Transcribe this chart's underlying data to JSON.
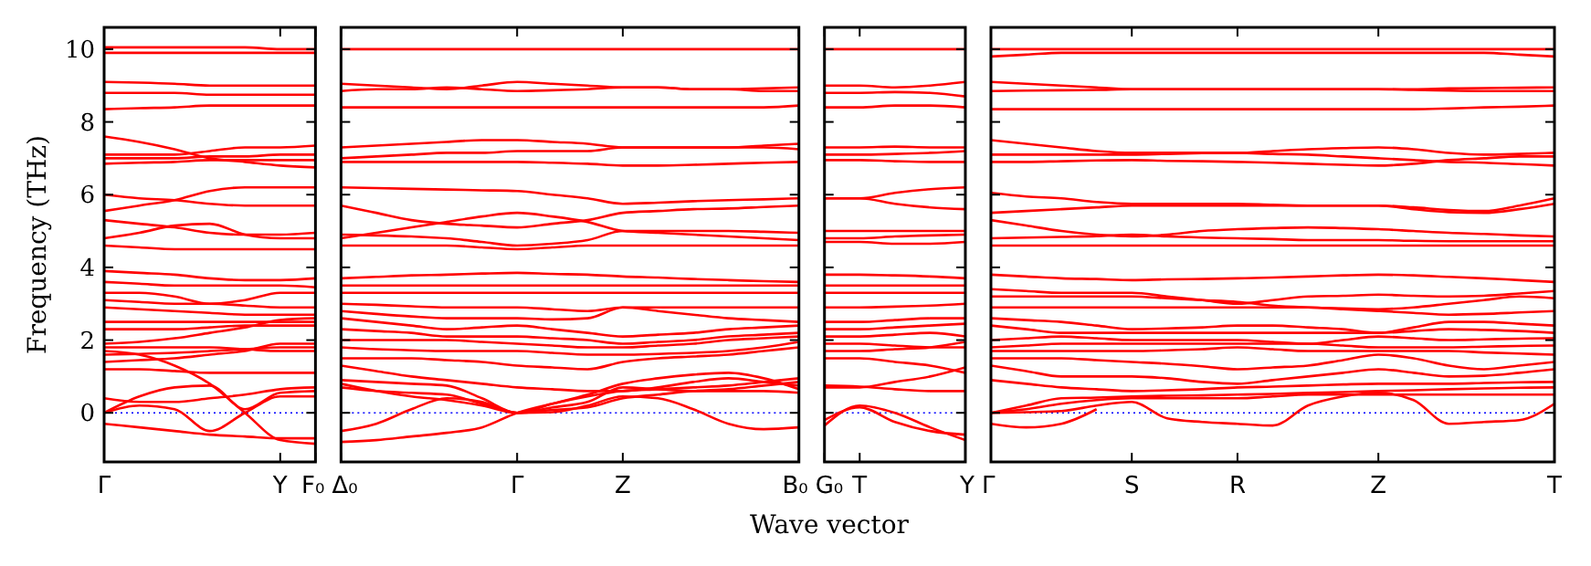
{
  "chart_data": [
    {
      "type": "line",
      "ylabel": "Frequency (THz)",
      "categories": [
        "Γ",
        null,
        null,
        null,
        null,
        "Y",
        "F₀"
      ],
      "ylim": [
        -1.35,
        10.6
      ],
      "yticks": [
        0,
        2,
        4,
        6,
        8,
        10
      ],
      "ref_lines": [
        {
          "axis": "y",
          "value": 0,
          "color": "#0000ff",
          "line_style": "dotted"
        }
      ],
      "series": [
        {
          "color": "#ff0000",
          "values": [
            10.05,
            10.05,
            10.05,
            10.05,
            10.05,
            10.0,
            10.0
          ]
        },
        {
          "color": "#ff0000",
          "values": [
            9.9,
            9.9,
            9.9,
            9.9,
            9.9,
            9.9,
            9.9
          ]
        },
        {
          "color": "#ff0000",
          "values": [
            9.1,
            9.08,
            9.05,
            9.0,
            9.0,
            9.0,
            9.0
          ]
        },
        {
          "color": "#ff0000",
          "values": [
            8.8,
            8.8,
            8.8,
            8.75,
            8.75,
            8.75,
            8.75
          ]
        },
        {
          "color": "#ff0000",
          "values": [
            8.35,
            8.38,
            8.4,
            8.45,
            8.45,
            8.45,
            8.45
          ]
        },
        {
          "color": "#ff0000",
          "values": [
            7.6,
            7.45,
            7.25,
            7.0,
            6.9,
            6.8,
            6.75
          ]
        },
        {
          "color": "#ff0000",
          "values": [
            7.1,
            7.1,
            7.1,
            7.2,
            7.3,
            7.3,
            7.35
          ]
        },
        {
          "color": "#ff0000",
          "values": [
            7.0,
            7.0,
            7.0,
            7.05,
            7.05,
            7.1,
            7.1
          ]
        },
        {
          "color": "#ff0000",
          "values": [
            6.85,
            6.88,
            6.9,
            6.95,
            6.95,
            6.95,
            6.95
          ]
        },
        {
          "color": "#ff0000",
          "values": [
            6.0,
            5.9,
            5.85,
            5.75,
            5.7,
            5.7,
            5.7
          ]
        },
        {
          "color": "#ff0000",
          "values": [
            5.55,
            5.7,
            5.85,
            6.1,
            6.2,
            6.2,
            6.2
          ]
        },
        {
          "color": "#ff0000",
          "values": [
            5.3,
            5.2,
            5.1,
            4.95,
            4.9,
            4.9,
            4.95
          ]
        },
        {
          "color": "#ff0000",
          "values": [
            4.8,
            4.95,
            5.15,
            5.2,
            4.9,
            4.8,
            4.8
          ]
        },
        {
          "color": "#ff0000",
          "values": [
            4.6,
            4.55,
            4.5,
            4.5,
            4.5,
            4.5,
            4.5
          ]
        },
        {
          "color": "#ff0000",
          "values": [
            3.9,
            3.85,
            3.8,
            3.7,
            3.65,
            3.65,
            3.7
          ]
        },
        {
          "color": "#ff0000",
          "values": [
            3.6,
            3.55,
            3.5,
            3.5,
            3.5,
            3.5,
            3.45
          ]
        },
        {
          "color": "#ff0000",
          "values": [
            3.3,
            3.3,
            3.2,
            3.0,
            3.1,
            3.3,
            3.3
          ]
        },
        {
          "color": "#ff0000",
          "values": [
            3.1,
            3.05,
            3.0,
            3.0,
            2.95,
            2.9,
            2.9
          ]
        },
        {
          "color": "#ff0000",
          "values": [
            2.9,
            2.85,
            2.8,
            2.75,
            2.7,
            2.7,
            2.7
          ]
        },
        {
          "color": "#ff0000",
          "values": [
            2.5,
            2.5,
            2.5,
            2.5,
            2.5,
            2.5,
            2.5
          ]
        },
        {
          "color": "#ff0000",
          "values": [
            2.3,
            2.3,
            2.3,
            2.35,
            2.4,
            2.4,
            2.4
          ]
        },
        {
          "color": "#ff0000",
          "values": [
            1.9,
            1.95,
            2.05,
            2.2,
            2.35,
            2.55,
            2.6
          ]
        },
        {
          "color": "#ff0000",
          "values": [
            1.8,
            1.8,
            1.8,
            1.8,
            1.75,
            1.7,
            1.7
          ]
        },
        {
          "color": "#ff0000",
          "values": [
            1.6,
            1.62,
            1.65,
            1.7,
            1.75,
            1.8,
            1.8
          ]
        },
        {
          "color": "#ff0000",
          "values": [
            1.4,
            1.45,
            1.5,
            1.6,
            1.7,
            1.9,
            1.9
          ]
        },
        {
          "color": "#ff0000",
          "values": [
            1.2,
            1.2,
            1.15,
            1.1,
            1.1,
            1.1,
            1.1
          ]
        },
        {
          "color": "#ff0000",
          "values": [
            1.7,
            1.6,
            1.3,
            0.8,
            0,
            -0.75,
            -0.85
          ]
        },
        {
          "color": "#ff0000",
          "values": [
            0,
            0.45,
            0.7,
            0.75,
            0.1,
            0.55,
            0.6
          ]
        },
        {
          "color": "#ff0000",
          "values": [
            0,
            0.2,
            0.1,
            -0.5,
            0,
            0.45,
            0.45
          ]
        },
        {
          "color": "#ff0000",
          "values": [
            0.4,
            0.3,
            0.3,
            0.4,
            0.5,
            0.65,
            0.7
          ]
        },
        {
          "color": "#ff0000",
          "values": [
            -0.3,
            -0.4,
            -0.5,
            -0.6,
            -0.65,
            -0.7,
            -0.7
          ]
        }
      ]
    },
    {
      "type": "line",
      "tick_labels": "x",
      "categories": [
        "Δ₀",
        null,
        null,
        null,
        null,
        "Γ",
        null,
        null,
        "Z",
        null,
        null,
        null,
        null,
        "B₀"
      ],
      "ylim": [
        -1.35,
        10.6
      ],
      "yticks": [
        0,
        2,
        4,
        6,
        8,
        10
      ],
      "ref_lines": [
        {
          "axis": "y",
          "value": 0,
          "color": "#0000ff",
          "line_style": "dotted"
        }
      ],
      "series": [
        {
          "color": "#ff0000",
          "values": [
            10.0,
            10.0,
            10.0,
            10.0,
            10.0,
            10.0,
            10.0,
            10.0,
            10.0,
            10.0,
            10.0,
            10.0,
            10.0,
            10.0
          ]
        },
        {
          "color": "#ff0000",
          "values": [
            9.05,
            9.0,
            8.95,
            8.9,
            9.0,
            9.1,
            9.05,
            9.0,
            8.95,
            8.95,
            8.9,
            8.9,
            8.85,
            8.85
          ]
        },
        {
          "color": "#ff0000",
          "values": [
            8.85,
            8.9,
            8.9,
            8.95,
            8.9,
            8.85,
            8.87,
            8.9,
            8.95,
            8.95,
            8.9,
            8.9,
            8.92,
            8.95
          ]
        },
        {
          "color": "#ff0000",
          "values": [
            8.4,
            8.4,
            8.4,
            8.4,
            8.4,
            8.4,
            8.4,
            8.4,
            8.4,
            8.4,
            8.4,
            8.4,
            8.4,
            8.45
          ]
        },
        {
          "color": "#ff0000",
          "values": [
            7.3,
            7.35,
            7.4,
            7.45,
            7.5,
            7.5,
            7.45,
            7.4,
            7.3,
            7.3,
            7.3,
            7.3,
            7.3,
            7.25
          ]
        },
        {
          "color": "#ff0000",
          "values": [
            7.0,
            7.05,
            7.1,
            7.15,
            7.15,
            7.2,
            7.2,
            7.2,
            7.3,
            7.3,
            7.3,
            7.3,
            7.35,
            7.4
          ]
        },
        {
          "color": "#ff0000",
          "values": [
            6.9,
            6.9,
            6.9,
            6.9,
            6.9,
            6.9,
            6.88,
            6.85,
            6.8,
            6.8,
            6.82,
            6.85,
            6.88,
            6.9
          ]
        },
        {
          "color": "#ff0000",
          "values": [
            6.2,
            6.18,
            6.16,
            6.14,
            6.12,
            6.1,
            6.0,
            5.9,
            5.75,
            5.78,
            5.82,
            5.85,
            5.87,
            5.9
          ]
        },
        {
          "color": "#ff0000",
          "values": [
            5.7,
            5.5,
            5.3,
            5.2,
            5.15,
            5.1,
            5.2,
            5.3,
            5.5,
            5.55,
            5.6,
            5.62,
            5.66,
            5.7
          ]
        },
        {
          "color": "#ff0000",
          "values": [
            4.8,
            4.95,
            5.1,
            5.25,
            5.4,
            5.5,
            5.4,
            5.25,
            5.0,
            4.95,
            4.9,
            4.85,
            4.8,
            4.75
          ]
        },
        {
          "color": "#ff0000",
          "values": [
            4.9,
            4.88,
            4.85,
            4.8,
            4.7,
            4.6,
            4.65,
            4.75,
            5.0,
            5.0,
            5.0,
            5.0,
            4.98,
            4.95
          ]
        },
        {
          "color": "#ff0000",
          "values": [
            4.6,
            4.6,
            4.6,
            4.6,
            4.55,
            4.5,
            4.55,
            4.6,
            4.6,
            4.6,
            4.6,
            4.6,
            4.6,
            4.6
          ]
        },
        {
          "color": "#ff0000",
          "values": [
            3.7,
            3.74,
            3.78,
            3.8,
            3.83,
            3.85,
            3.82,
            3.8,
            3.75,
            3.72,
            3.68,
            3.65,
            3.62,
            3.6
          ]
        },
        {
          "color": "#ff0000",
          "values": [
            3.5,
            3.5,
            3.5,
            3.5,
            3.5,
            3.5,
            3.5,
            3.5,
            3.5,
            3.5,
            3.5,
            3.5,
            3.5,
            3.5
          ]
        },
        {
          "color": "#ff0000",
          "values": [
            3.3,
            3.3,
            3.3,
            3.3,
            3.3,
            3.3,
            3.3,
            3.3,
            3.3,
            3.3,
            3.3,
            3.3,
            3.3,
            3.3
          ]
        },
        {
          "color": "#ff0000",
          "values": [
            3.0,
            2.97,
            2.93,
            2.9,
            2.9,
            2.9,
            2.85,
            2.8,
            2.9,
            2.9,
            2.9,
            2.9,
            2.9,
            2.9
          ]
        },
        {
          "color": "#ff0000",
          "values": [
            2.8,
            2.72,
            2.65,
            2.6,
            2.6,
            2.6,
            2.57,
            2.6,
            2.9,
            2.8,
            2.7,
            2.6,
            2.55,
            2.5
          ]
        },
        {
          "color": "#ff0000",
          "values": [
            2.6,
            2.5,
            2.4,
            2.3,
            2.35,
            2.4,
            2.3,
            2.2,
            2.1,
            2.15,
            2.2,
            2.3,
            2.35,
            2.4
          ]
        },
        {
          "color": "#ff0000",
          "values": [
            2.3,
            2.25,
            2.2,
            2.1,
            2.1,
            2.1,
            2.05,
            2.0,
            1.9,
            1.95,
            2.0,
            2.1,
            2.15,
            2.2
          ]
        },
        {
          "color": "#ff0000",
          "values": [
            2.0,
            2.0,
            2.0,
            2.0,
            1.95,
            1.9,
            1.85,
            1.8,
            1.8,
            1.85,
            1.9,
            2.0,
            2.05,
            2.1
          ]
        },
        {
          "color": "#ff0000",
          "values": [
            1.8,
            1.75,
            1.72,
            1.7,
            1.7,
            1.7,
            1.65,
            1.6,
            1.6,
            1.62,
            1.65,
            1.7,
            1.8,
            1.95
          ]
        },
        {
          "color": "#ff0000",
          "values": [
            1.5,
            1.5,
            1.5,
            1.45,
            1.4,
            1.3,
            1.25,
            1.2,
            1.4,
            1.5,
            1.55,
            1.6,
            1.7,
            1.8
          ]
        },
        {
          "color": "#ff0000",
          "values": [
            1.3,
            1.15,
            1.0,
            0.9,
            0.8,
            0.7,
            0.65,
            0.6,
            0.6,
            0.7,
            0.85,
            0.95,
            0.85,
            0.75
          ]
        },
        {
          "color": "#ff0000",
          "values": [
            0.9,
            0.85,
            0.8,
            0.75,
            0.4,
            0,
            0.25,
            0.5,
            0.8,
            0.95,
            1.05,
            1.1,
            0.95,
            0.65
          ]
        },
        {
          "color": "#ff0000",
          "values": [
            0.7,
            0.6,
            0.55,
            0.5,
            0.25,
            0,
            0.15,
            0.3,
            0.7,
            0.65,
            0.6,
            0.6,
            0.6,
            0.55
          ]
        },
        {
          "color": "#ff0000",
          "values": [
            0.8,
            0.6,
            0.45,
            0.35,
            0.2,
            0,
            0.08,
            0.15,
            0.4,
            0.5,
            0.6,
            0.65,
            0.75,
            0.85
          ]
        },
        {
          "color": "#ff0000",
          "values": [
            -0.5,
            -0.3,
            0.1,
            0.4,
            0.3,
            0,
            0.02,
            0.2,
            0.45,
            0.4,
            0.1,
            -0.3,
            -0.45,
            -0.4
          ]
        },
        {
          "color": "#ff0000",
          "values": [
            -0.8,
            -0.75,
            -0.65,
            -0.55,
            -0.4,
            0,
            0.25,
            0.45,
            0.6,
            0.65,
            0.7,
            0.75,
            0.85,
            0.95
          ]
        }
      ]
    },
    {
      "type": "line",
      "tick_labels": "x",
      "xlabel": "Wave vector",
      "categories": [
        "G₀",
        "T",
        null,
        null,
        "Y"
      ],
      "ylim": [
        -1.35,
        10.6
      ],
      "yticks": [
        0,
        2,
        4,
        6,
        8,
        10
      ],
      "ref_lines": [
        {
          "axis": "y",
          "value": 0,
          "color": "#0000ff",
          "line_style": "dotted"
        }
      ],
      "series": [
        {
          "color": "#ff0000",
          "values": [
            10,
            10,
            10,
            10,
            10
          ]
        },
        {
          "color": "#ff0000",
          "values": [
            9.0,
            9.0,
            8.95,
            9.0,
            9.1
          ]
        },
        {
          "color": "#ff0000",
          "values": [
            8.8,
            8.8,
            8.82,
            8.8,
            8.7
          ]
        },
        {
          "color": "#ff0000",
          "values": [
            8.4,
            8.4,
            8.45,
            8.45,
            8.4
          ]
        },
        {
          "color": "#ff0000",
          "values": [
            7.3,
            7.3,
            7.32,
            7.3,
            7.3
          ]
        },
        {
          "color": "#ff0000",
          "values": [
            7.1,
            7.1,
            7.12,
            7.15,
            7.2
          ]
        },
        {
          "color": "#ff0000",
          "values": [
            6.95,
            6.95,
            6.92,
            6.9,
            6.9
          ]
        },
        {
          "color": "#ff0000",
          "values": [
            5.9,
            5.9,
            6.05,
            6.15,
            6.2
          ]
        },
        {
          "color": "#ff0000",
          "values": [
            5.9,
            5.9,
            5.75,
            5.65,
            5.6
          ]
        },
        {
          "color": "#ff0000",
          "values": [
            5.0,
            5.0,
            5.0,
            5.0,
            5.0
          ]
        },
        {
          "color": "#ff0000",
          "values": [
            4.8,
            4.8,
            4.85,
            4.88,
            4.9
          ]
        },
        {
          "color": "#ff0000",
          "values": [
            4.7,
            4.7,
            4.65,
            4.65,
            4.7
          ]
        },
        {
          "color": "#ff0000",
          "values": [
            3.8,
            3.8,
            3.78,
            3.75,
            3.7
          ]
        },
        {
          "color": "#ff0000",
          "values": [
            3.5,
            3.5,
            3.5,
            3.5,
            3.5
          ]
        },
        {
          "color": "#ff0000",
          "values": [
            3.3,
            3.3,
            3.3,
            3.3,
            3.3
          ]
        },
        {
          "color": "#ff0000",
          "values": [
            2.9,
            2.9,
            2.92,
            2.95,
            3.0
          ]
        },
        {
          "color": "#ff0000",
          "values": [
            2.5,
            2.5,
            2.55,
            2.6,
            2.6
          ]
        },
        {
          "color": "#ff0000",
          "values": [
            2.3,
            2.3,
            2.35,
            2.4,
            2.45
          ]
        },
        {
          "color": "#ff0000",
          "values": [
            2.1,
            2.1,
            2.15,
            2.2,
            2.1
          ]
        },
        {
          "color": "#ff0000",
          "values": [
            1.9,
            1.9,
            1.85,
            1.8,
            1.8
          ]
        },
        {
          "color": "#ff0000",
          "values": [
            1.7,
            1.7,
            1.75,
            1.8,
            1.95
          ]
        },
        {
          "color": "#ff0000",
          "values": [
            1.5,
            1.5,
            1.4,
            1.3,
            1.1
          ]
        },
        {
          "color": "#ff0000",
          "values": [
            0.7,
            0.7,
            0.85,
            1.0,
            1.25
          ]
        },
        {
          "color": "#ff0000",
          "values": [
            0.75,
            0.72,
            0.65,
            0.6,
            0.6
          ]
        },
        {
          "color": "#ff0000",
          "values": [
            -0.35,
            0.2,
            0.0,
            -0.4,
            -0.75
          ]
        },
        {
          "color": "#ff0000",
          "values": [
            -0.2,
            0.15,
            -0.25,
            -0.5,
            -0.6
          ]
        }
      ]
    },
    {
      "type": "line",
      "tick_labels": "x",
      "categories": [
        "Γ",
        null,
        null,
        null,
        "S",
        null,
        null,
        "R",
        null,
        null,
        null,
        "Z",
        null,
        null,
        null,
        null,
        "T"
      ],
      "ylim": [
        -1.35,
        10.6
      ],
      "yticks": [
        0,
        2,
        4,
        6,
        8,
        10
      ],
      "ref_lines": [
        {
          "axis": "y",
          "value": 0,
          "color": "#0000ff",
          "line_style": "dotted"
        }
      ],
      "series": [
        {
          "color": "#ff0000",
          "values": [
            10,
            10,
            10,
            10,
            10,
            10,
            10,
            10,
            10,
            10,
            10,
            10,
            10,
            10,
            10,
            10,
            10
          ]
        },
        {
          "color": "#ff0000",
          "values": [
            9.8,
            9.85,
            9.9,
            9.9,
            9.9,
            9.9,
            9.9,
            9.9,
            9.9,
            9.9,
            9.9,
            9.9,
            9.9,
            9.9,
            9.9,
            9.85,
            9.8
          ]
        },
        {
          "color": "#ff0000",
          "values": [
            9.1,
            9.05,
            9.0,
            8.95,
            8.9,
            8.9,
            8.9,
            8.9,
            8.9,
            8.9,
            8.9,
            8.9,
            8.88,
            8.86,
            8.85,
            8.85,
            8.85
          ]
        },
        {
          "color": "#ff0000",
          "values": [
            8.85,
            8.86,
            8.87,
            8.88,
            8.9,
            8.9,
            8.9,
            8.9,
            8.9,
            8.9,
            8.9,
            8.9,
            8.9,
            8.92,
            8.93,
            8.94,
            8.95
          ]
        },
        {
          "color": "#ff0000",
          "values": [
            8.35,
            8.35,
            8.35,
            8.35,
            8.35,
            8.35,
            8.35,
            8.35,
            8.35,
            8.35,
            8.35,
            8.35,
            8.35,
            8.37,
            8.4,
            8.42,
            8.45
          ]
        },
        {
          "color": "#ff0000",
          "values": [
            7.5,
            7.4,
            7.3,
            7.2,
            7.15,
            7.15,
            7.15,
            7.15,
            7.2,
            7.25,
            7.28,
            7.3,
            7.25,
            7.15,
            7.1,
            7.12,
            7.15
          ]
        },
        {
          "color": "#ff0000",
          "values": [
            7.1,
            7.1,
            7.1,
            7.1,
            7.1,
            7.12,
            7.14,
            7.15,
            7.12,
            7.1,
            7.05,
            7.0,
            6.95,
            6.9,
            6.88,
            6.84,
            6.8
          ]
        },
        {
          "color": "#ff0000",
          "values": [
            6.9,
            6.9,
            6.92,
            6.94,
            6.95,
            6.93,
            6.92,
            6.9,
            6.88,
            6.85,
            6.82,
            6.8,
            6.85,
            6.95,
            7.0,
            7.05,
            7.05
          ]
        },
        {
          "color": "#ff0000",
          "values": [
            6.05,
            5.95,
            5.9,
            5.8,
            5.75,
            5.75,
            5.75,
            5.75,
            5.72,
            5.7,
            5.7,
            5.7,
            5.65,
            5.58,
            5.55,
            5.7,
            5.9
          ]
        },
        {
          "color": "#ff0000",
          "values": [
            5.5,
            5.55,
            5.6,
            5.65,
            5.7,
            5.7,
            5.7,
            5.7,
            5.7,
            5.7,
            5.7,
            5.7,
            5.6,
            5.52,
            5.5,
            5.6,
            5.75
          ]
        },
        {
          "color": "#ff0000",
          "values": [
            5.3,
            5.15,
            5.0,
            4.9,
            4.85,
            4.9,
            5.0,
            5.05,
            5.08,
            5.1,
            5.08,
            5.05,
            5.0,
            4.95,
            4.92,
            4.88,
            4.85
          ]
        },
        {
          "color": "#ff0000",
          "values": [
            4.8,
            4.82,
            4.84,
            4.86,
            4.9,
            4.85,
            4.82,
            4.8,
            4.78,
            4.75,
            4.75,
            4.75,
            4.73,
            4.72,
            4.72,
            4.72,
            4.72
          ]
        },
        {
          "color": "#ff0000",
          "values": [
            4.6,
            4.6,
            4.6,
            4.6,
            4.6,
            4.6,
            4.6,
            4.6,
            4.6,
            4.6,
            4.6,
            4.6,
            4.6,
            4.6,
            4.6,
            4.6,
            4.6
          ]
        },
        {
          "color": "#ff0000",
          "values": [
            3.8,
            3.75,
            3.7,
            3.68,
            3.65,
            3.67,
            3.68,
            3.7,
            3.72,
            3.75,
            3.78,
            3.8,
            3.78,
            3.74,
            3.7,
            3.65,
            3.6
          ]
        },
        {
          "color": "#ff0000",
          "values": [
            3.4,
            3.35,
            3.3,
            3.3,
            3.3,
            3.2,
            3.1,
            3.0,
            3.1,
            3.2,
            3.22,
            3.25,
            3.22,
            3.2,
            3.22,
            3.28,
            3.35
          ]
        },
        {
          "color": "#ff0000",
          "values": [
            3.2,
            3.2,
            3.2,
            3.2,
            3.2,
            3.15,
            3.1,
            3.05,
            2.95,
            2.9,
            2.87,
            2.85,
            2.9,
            3.0,
            3.1,
            3.2,
            3.15
          ]
        },
        {
          "color": "#ff0000",
          "values": [
            2.9,
            2.9,
            2.9,
            2.9,
            2.9,
            2.9,
            2.9,
            2.9,
            2.9,
            2.9,
            2.85,
            2.8,
            2.75,
            2.7,
            2.72,
            2.76,
            2.8
          ]
        },
        {
          "color": "#ff0000",
          "values": [
            2.6,
            2.55,
            2.5,
            2.4,
            2.3,
            2.32,
            2.35,
            2.4,
            2.4,
            2.35,
            2.3,
            2.2,
            2.35,
            2.5,
            2.5,
            2.45,
            2.4
          ]
        },
        {
          "color": "#ff0000",
          "values": [
            2.4,
            2.3,
            2.2,
            2.2,
            2.2,
            2.2,
            2.2,
            2.2,
            2.2,
            2.2,
            2.2,
            2.2,
            2.25,
            2.3,
            2.28,
            2.25,
            2.2
          ]
        },
        {
          "color": "#ff0000",
          "values": [
            2.0,
            2.05,
            2.1,
            2.05,
            2.0,
            2.0,
            2.0,
            2.0,
            1.95,
            1.9,
            2.0,
            2.1,
            2.05,
            2.0,
            2.02,
            2.04,
            2.05
          ]
        },
        {
          "color": "#ff0000",
          "values": [
            1.8,
            1.85,
            1.9,
            1.9,
            1.9,
            1.9,
            1.9,
            1.9,
            1.9,
            1.9,
            1.85,
            1.8,
            1.8,
            1.8,
            1.82,
            1.84,
            1.85
          ]
        },
        {
          "color": "#ff0000",
          "values": [
            1.7,
            1.7,
            1.7,
            1.7,
            1.7,
            1.72,
            1.75,
            1.8,
            1.75,
            1.7,
            1.7,
            1.7,
            1.7,
            1.7,
            1.66,
            1.63,
            1.6
          ]
        },
        {
          "color": "#ff0000",
          "values": [
            1.5,
            1.5,
            1.5,
            1.45,
            1.4,
            1.35,
            1.28,
            1.2,
            1.25,
            1.3,
            1.45,
            1.6,
            1.5,
            1.3,
            1.2,
            1.3,
            1.4
          ]
        },
        {
          "color": "#ff0000",
          "values": [
            1.3,
            1.15,
            1.0,
            1.0,
            1.0,
            0.95,
            0.85,
            0.8,
            0.9,
            1.0,
            1.1,
            1.2,
            1.1,
            1.0,
            1.02,
            1.1,
            1.2
          ]
        },
        {
          "color": "#ff0000",
          "values": [
            0.9,
            0.8,
            0.7,
            0.65,
            0.6,
            0.62,
            0.65,
            0.7,
            0.72,
            0.75,
            0.78,
            0.8,
            0.8,
            0.8,
            0.82,
            0.84,
            0.85
          ]
        },
        {
          "color": "#ff0000",
          "values": [
            0,
            0.2,
            0.4,
            0.42,
            0.45,
            0.47,
            0.48,
            0.5,
            0.52,
            0.55,
            0.57,
            0.6,
            0.62,
            0.65,
            0.67,
            0.69,
            0.7
          ]
        },
        {
          "color": "#ff0000",
          "values": [
            0,
            0.1,
            0.25,
            0.35,
            0.4,
            0.4,
            0.4,
            0.4,
            0.45,
            0.5,
            0.5,
            0.5,
            0.5,
            0.5,
            0.5,
            0.5,
            0.5
          ]
        },
        {
          "color": "#ff0000",
          "values": [
            0,
            0.02,
            0.05,
            0.2,
            0.3,
            -0.15,
            -0.25,
            -0.3,
            -0.35,
            0.2,
            0.45,
            0.55,
            0.35,
            -0.3,
            -0.25,
            -0.2,
            0.25
          ]
        },
        {
          "color": "#ff0000",
          "values": [
            -0.3,
            -0.4,
            -0.3,
            0.1,
            null,
            null,
            null,
            null,
            null,
            null,
            null,
            null,
            null,
            null,
            null,
            null,
            null
          ]
        }
      ]
    }
  ]
}
